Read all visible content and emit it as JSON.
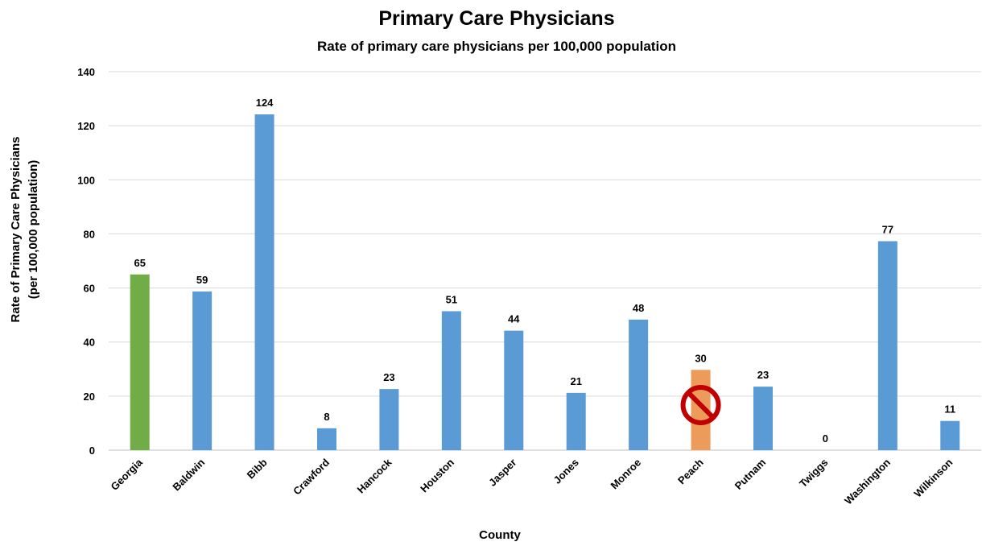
{
  "chart_data": {
    "type": "bar",
    "title": "Primary Care Physicians",
    "subtitle": "Rate of primary care physicians per 100,000 population",
    "xlabel": "County",
    "ylabel_lines": [
      "Rate of Primary Care Physicians",
      "(per 100,000 population)"
    ],
    "ylim": [
      0,
      140
    ],
    "yticks": [
      0,
      20,
      40,
      60,
      80,
      100,
      120,
      140
    ],
    "grid": true,
    "categories": [
      "Georgia",
      "Baldwin",
      "Bibb",
      "Crawford",
      "Hancock",
      "Houston",
      "Jasper",
      "Jones",
      "Monroe",
      "Peach",
      "Putnam",
      "Twiggs",
      "Washington",
      "Wilkinson"
    ],
    "values": [
      65,
      59,
      124,
      8,
      23,
      51,
      44,
      21,
      48,
      30,
      23,
      0,
      77,
      11
    ],
    "plotted_values": [
      65,
      58.7,
      124.2,
      8.1,
      22.6,
      51.4,
      44.2,
      21.2,
      48.3,
      29.7,
      23.5,
      0,
      77.3,
      10.8
    ],
    "bar_colors": [
      "#70ad47",
      "#5b9bd5",
      "#5b9bd5",
      "#5b9bd5",
      "#5b9bd5",
      "#5b9bd5",
      "#5b9bd5",
      "#5b9bd5",
      "#5b9bd5",
      "#ed9b5a",
      "#5b9bd5",
      "#5b9bd5",
      "#5b9bd5",
      "#5b9bd5"
    ],
    "marker": {
      "category": "Peach",
      "icon": "prohibited-icon",
      "color": "#c00000"
    }
  }
}
